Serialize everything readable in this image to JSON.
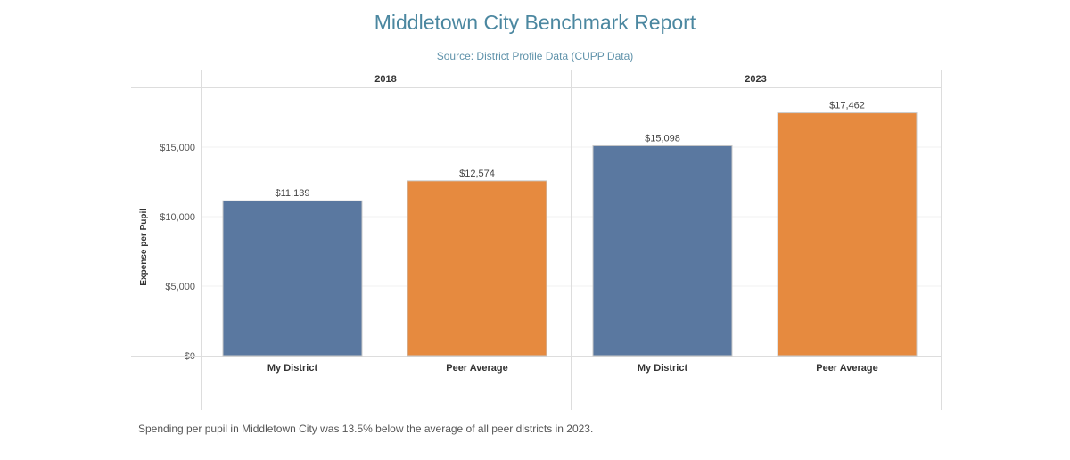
{
  "chart_data": {
    "type": "bar",
    "title": "Middletown City Benchmark Report",
    "subtitle": "Source:  District Profile Data (CUPP Data)",
    "ylabel": "Expense per Pupil",
    "xlabel": "",
    "ylim": [
      0,
      17500
    ],
    "yticks": [
      0,
      5000,
      10000,
      15000
    ],
    "ytick_labels": [
      "$0",
      "$5,000",
      "$10,000",
      "$15,000"
    ],
    "grid": true,
    "panels": [
      {
        "label": "2018",
        "categories": [
          "My District",
          "Peer Average"
        ],
        "values": [
          11139,
          12574
        ],
        "value_labels": [
          "$11,139",
          "$12,574"
        ]
      },
      {
        "label": "2023",
        "categories": [
          "My District",
          "Peer Average"
        ],
        "values": [
          15098,
          17462
        ],
        "value_labels": [
          "$15,098",
          "$17,462"
        ]
      }
    ],
    "colors": {
      "My District": "#5a78a0",
      "Peer Average": "#e68a3f"
    },
    "footnote": "Spending  per pupil in Middletown City was 13.5% below the average of all peer districts in 2023."
  }
}
